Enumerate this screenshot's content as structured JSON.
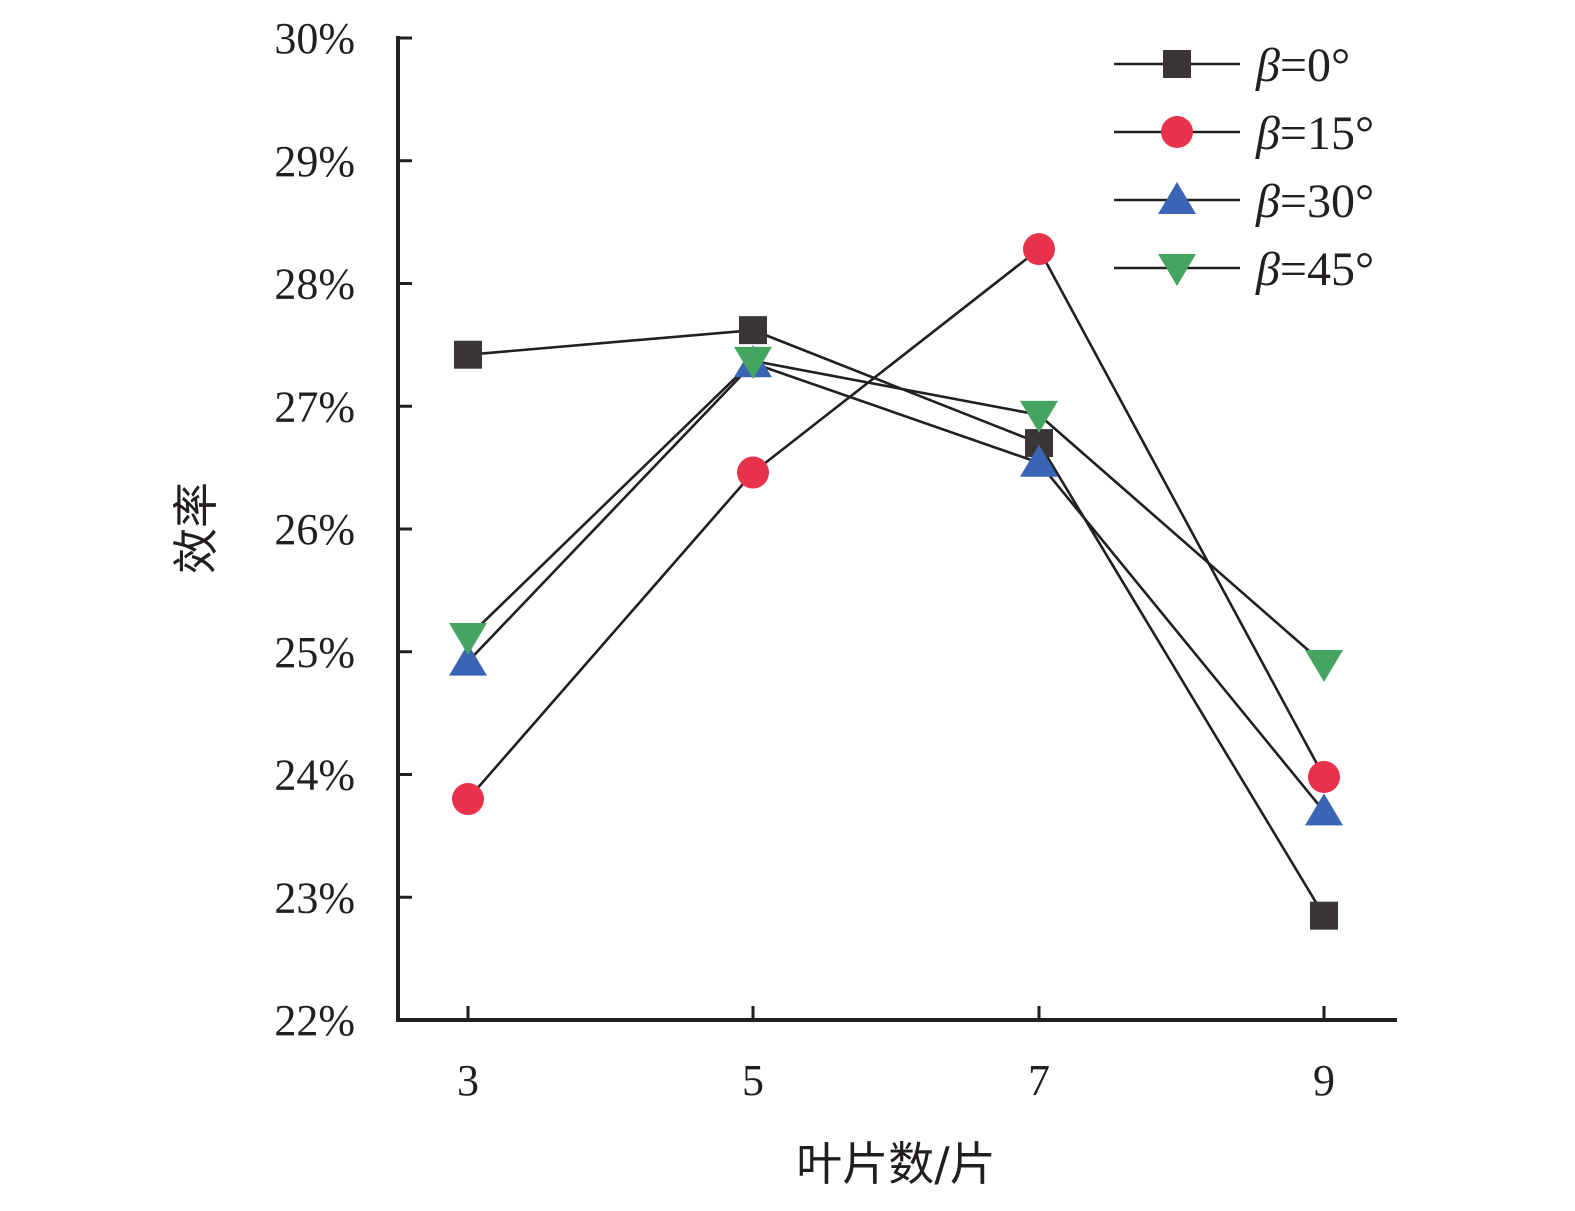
{
  "chart_data": {
    "type": "line",
    "title": "",
    "xlabel": "叶片数/片",
    "ylabel": "效率",
    "x": [
      3,
      5,
      7,
      9
    ],
    "x_tick_labels": [
      "3",
      "5",
      "7",
      "9"
    ],
    "ylim": [
      22,
      30
    ],
    "y_ticks": [
      22,
      23,
      24,
      25,
      26,
      27,
      28,
      29,
      30
    ],
    "y_tick_labels": [
      "22%",
      "23%",
      "24%",
      "25%",
      "26%",
      "27%",
      "28%",
      "29%",
      "30%"
    ],
    "grid": false,
    "legend_position": "top-right",
    "series": [
      {
        "name": "β=0°",
        "name_symbol": "β",
        "name_rest": "=0°",
        "marker": "square",
        "color": "#3a3536",
        "values": [
          27.42,
          27.62,
          26.7,
          22.85
        ]
      },
      {
        "name": "β=15°",
        "name_symbol": "β",
        "name_rest": "=15°",
        "marker": "circle",
        "color": "#e8314a",
        "values": [
          23.8,
          26.46,
          28.28,
          23.98
        ]
      },
      {
        "name": "β=30°",
        "name_symbol": "β",
        "name_rest": "=30°",
        "marker": "triangle-up",
        "color": "#3a64b4",
        "values": [
          24.92,
          27.35,
          26.54,
          23.7
        ]
      },
      {
        "name": "β=45°",
        "name_symbol": "β",
        "name_rest": "=45°",
        "marker": "triangle-down",
        "color": "#45a560",
        "values": [
          25.12,
          27.37,
          26.93,
          24.9
        ]
      }
    ]
  }
}
